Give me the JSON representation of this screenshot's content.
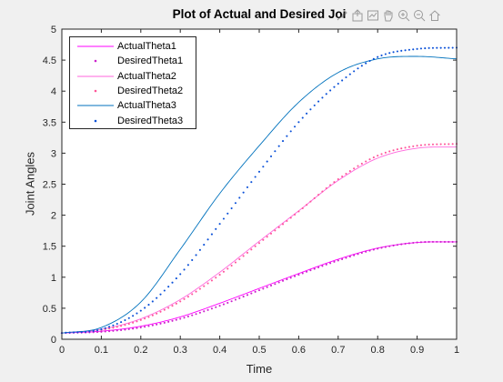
{
  "chart_data": {
    "type": "line",
    "title": "Plot of Actual and Desired Joi",
    "xlabel": "Time",
    "ylabel": "Joint Angles",
    "xlim": [
      0,
      1
    ],
    "ylim": [
      0,
      5
    ],
    "xticks": [
      "0",
      "0.1",
      "0.2",
      "0.3",
      "0.4",
      "0.5",
      "0.6",
      "0.7",
      "0.8",
      "0.9",
      "1"
    ],
    "yticks": [
      "0",
      "0.5",
      "1",
      "1.5",
      "2",
      "2.5",
      "3",
      "3.5",
      "4",
      "4.5",
      "5"
    ],
    "legend_position": "top-left",
    "series": [
      {
        "name": "ActualTheta1",
        "style": "solid",
        "color": "#ff00ff",
        "x": [
          0,
          0.1,
          0.2,
          0.3,
          0.4,
          0.5,
          0.6,
          0.7,
          0.8,
          0.9,
          1.0
        ],
        "y": [
          0.1,
          0.13,
          0.21,
          0.36,
          0.58,
          0.82,
          1.06,
          1.29,
          1.47,
          1.56,
          1.57
        ]
      },
      {
        "name": "DesiredTheta1",
        "style": "dotted",
        "color": "#cc22cc",
        "x": [
          0,
          0.1,
          0.2,
          0.3,
          0.4,
          0.5,
          0.6,
          0.7,
          0.8,
          0.9,
          1.0
        ],
        "y": [
          0.1,
          0.12,
          0.19,
          0.33,
          0.54,
          0.79,
          1.04,
          1.27,
          1.46,
          1.56,
          1.57
        ]
      },
      {
        "name": "ActualTheta2",
        "style": "solid",
        "color": "#ff66dd",
        "x": [
          0,
          0.1,
          0.2,
          0.3,
          0.4,
          0.5,
          0.6,
          0.7,
          0.8,
          0.9,
          1.0
        ],
        "y": [
          0.1,
          0.16,
          0.33,
          0.64,
          1.08,
          1.58,
          2.07,
          2.56,
          2.92,
          3.08,
          3.1
        ]
      },
      {
        "name": "DesiredTheta2",
        "style": "dotted",
        "color": "#ff5599",
        "x": [
          0,
          0.1,
          0.2,
          0.3,
          0.4,
          0.5,
          0.6,
          0.7,
          0.8,
          0.9,
          1.0
        ],
        "y": [
          0.1,
          0.15,
          0.31,
          0.61,
          1.04,
          1.55,
          2.06,
          2.58,
          2.96,
          3.12,
          3.15
        ]
      },
      {
        "name": "ActualTheta3",
        "style": "solid",
        "color": "#0072bd",
        "x": [
          0,
          0.1,
          0.2,
          0.3,
          0.4,
          0.5,
          0.6,
          0.7,
          0.8,
          0.9,
          1.0
        ],
        "y": [
          0.1,
          0.19,
          0.6,
          1.45,
          2.35,
          3.12,
          3.82,
          4.3,
          4.52,
          4.56,
          4.52
        ]
      },
      {
        "name": "DesiredTheta3",
        "style": "dotted",
        "color": "#0a50d8",
        "x": [
          0,
          0.1,
          0.2,
          0.3,
          0.4,
          0.5,
          0.6,
          0.7,
          0.8,
          0.9,
          1.0
        ],
        "y": [
          0.1,
          0.16,
          0.46,
          1.05,
          1.86,
          2.7,
          3.5,
          4.12,
          4.55,
          4.68,
          4.7
        ]
      }
    ]
  },
  "toolbar": {
    "icons": [
      "brush-icon",
      "export-icon",
      "datatip-icon",
      "pan-icon",
      "zoom-in-icon",
      "zoom-out-icon",
      "home-icon"
    ]
  }
}
